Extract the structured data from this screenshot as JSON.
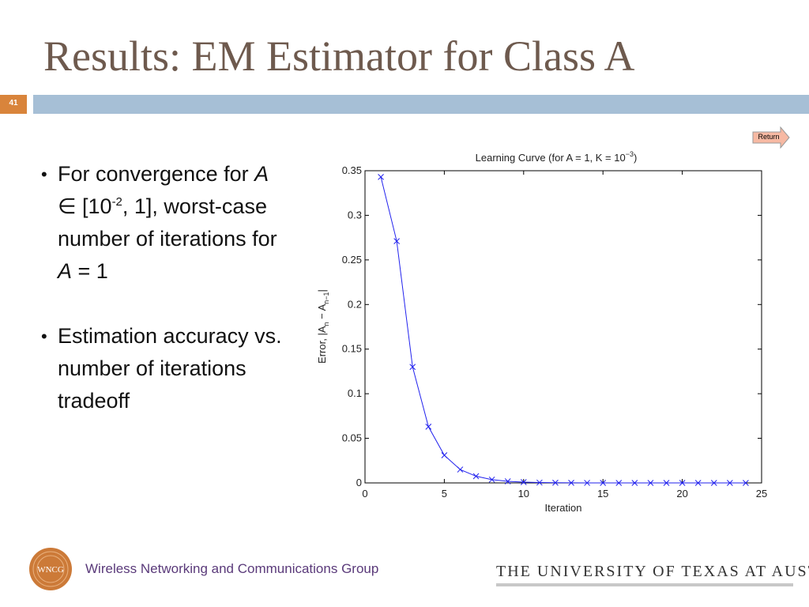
{
  "slide": {
    "title": "Results: EM Estimator for Class A",
    "number": "41",
    "return_label": "Return",
    "bullets": [
      {
        "pre": "For convergence for ",
        "var1": "A",
        "rel": " ∈ [10",
        "exp": "-2",
        "mid": ", 1], worst-case number of iterations for ",
        "var2": "A",
        "post": " = 1"
      },
      {
        "text": "Estimation accuracy vs. number of iterations tradeoff"
      }
    ]
  },
  "footer": {
    "logo_text": "WNCG",
    "group_name": "Wireless Networking and Communications Group",
    "university": "THE UNIVERSITY OF TEXAS AT AUSTIN"
  },
  "colors": {
    "title": "#6e5a4e",
    "accent_orange": "#d9843b",
    "band_blue": "#a6bfd6",
    "series": "#2222ee"
  },
  "chart_data": {
    "type": "line",
    "title_main": "Learning Curve (for A = 1, K = 10",
    "title_exp": "−3",
    "title_end": ")",
    "xlabel": "Iteration",
    "ylabel": "Error,  |A",
    "ylabel_sub1": "n",
    "ylabel_mid": " − A",
    "ylabel_sub2": "n−1",
    "ylabel_end": "|",
    "xlim": [
      0,
      25
    ],
    "ylim": [
      0,
      0.35
    ],
    "xticks": [
      0,
      5,
      10,
      15,
      20,
      25
    ],
    "yticks": [
      0,
      0.05,
      0.1,
      0.15,
      0.2,
      0.25,
      0.3,
      0.35
    ],
    "ytick_labels": [
      "0",
      "0.05",
      "0.1",
      "0.15",
      "0.2",
      "0.25",
      "0.3",
      "0.35"
    ],
    "grid": false,
    "marker": "x",
    "series": [
      {
        "x": [
          1,
          2,
          3,
          4,
          5,
          6,
          7,
          8,
          9,
          10,
          11,
          12,
          13,
          14,
          15,
          16,
          17,
          18,
          19,
          20,
          21,
          22,
          23,
          24
        ],
        "values": [
          0.343,
          0.271,
          0.13,
          0.063,
          0.031,
          0.015,
          0.0075,
          0.0037,
          0.0018,
          0.0009,
          0.0004,
          0.0002,
          0.0001,
          5e-05,
          3e-05,
          1e-05,
          0,
          0,
          0,
          0,
          0,
          0,
          0,
          0
        ]
      }
    ]
  }
}
